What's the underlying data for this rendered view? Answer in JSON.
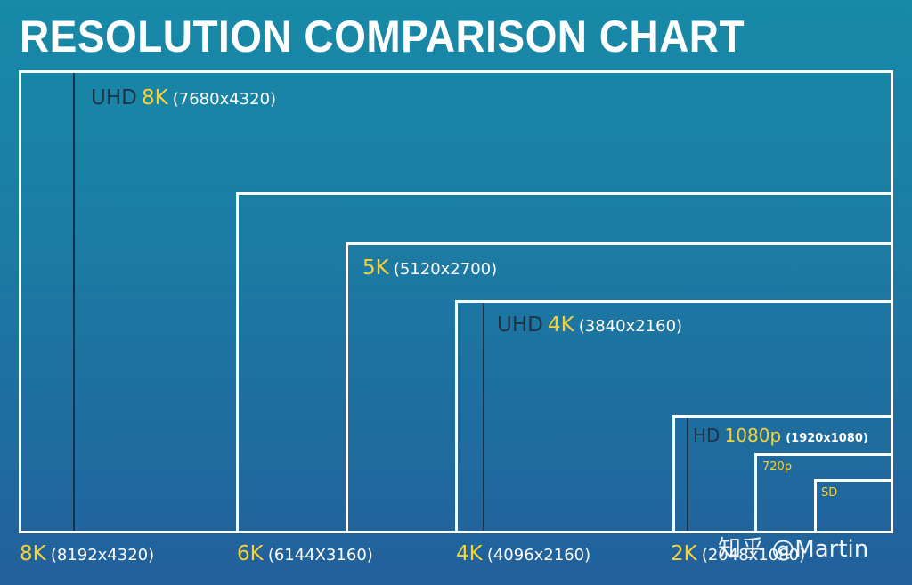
{
  "title": "RESOLUTION COMPARISON CHART",
  "boxes": {
    "uhd8k": {
      "prefix": "UHD",
      "name": "8K",
      "dims": "(7680x4320)"
    },
    "k5": {
      "name": "5K",
      "dims": "(5120x2700)"
    },
    "uhd4k": {
      "prefix": "UHD",
      "name": "4K",
      "dims": "(3840x2160)"
    },
    "hd1080": {
      "prefix": "HD",
      "name": "1080p",
      "dims": "(1920x1080)"
    },
    "p720": {
      "name": "720p"
    },
    "sd": {
      "name": "SD"
    }
  },
  "bottom_labels": [
    {
      "name": "8K",
      "dims": "(8192x4320)"
    },
    {
      "name": "6K",
      "dims": "(6144X3160)"
    },
    {
      "name": "4K",
      "dims": "(4096x2160)"
    },
    {
      "name": "2K",
      "dims": "(2048x1080)"
    }
  ],
  "watermark": "知乎 @Martin",
  "colors": {
    "background_top": "#178aa7",
    "background_bottom": "#22609b",
    "accent": "#f4d23a",
    "label_dark": "#1c3348",
    "box_border": "#ffffff"
  }
}
